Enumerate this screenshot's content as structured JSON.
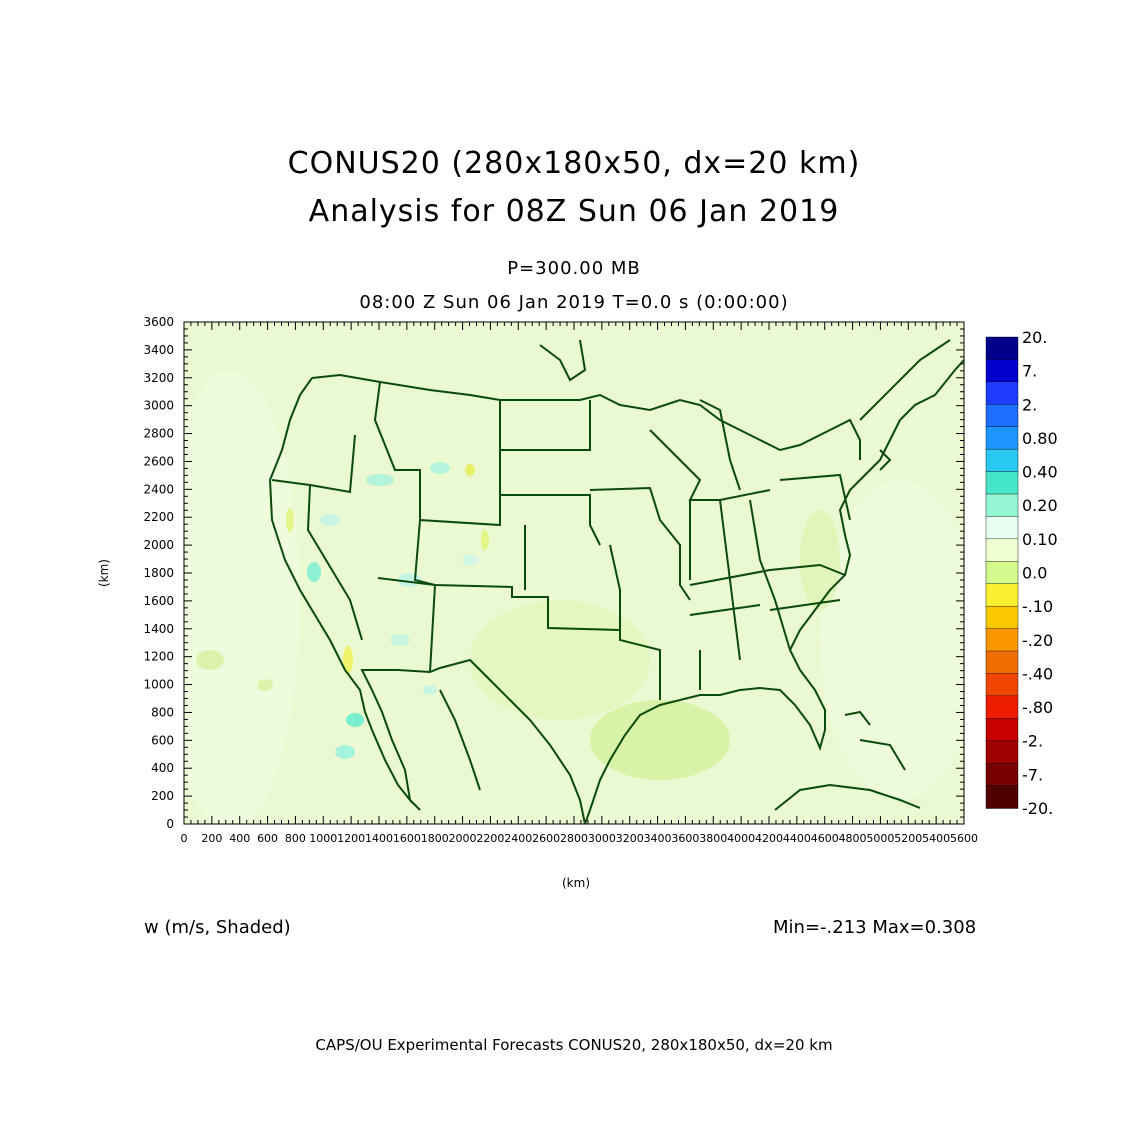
{
  "header": {
    "title_line1": "CONUS20 (280x180x50, dx=20 km)",
    "title_line2": "Analysis for 08Z Sun 06 Jan 2019",
    "level": "P=300.00 MB",
    "time_line": "08:00 Z Sun 06 Jan 2019    T=0.0 s (0:00:00)"
  },
  "axes": {
    "x_label": "(km)",
    "y_label": "(km)",
    "x_ticks": [
      "0",
      "200",
      "400",
      "600",
      "800",
      "1000",
      "1200",
      "1400",
      "1600",
      "1800",
      "2000",
      "2200",
      "2400",
      "2600",
      "2800",
      "3000",
      "3200",
      "3400",
      "3600",
      "3800",
      "4000",
      "4200",
      "4400",
      "4600",
      "4800",
      "5000",
      "5200",
      "5400",
      "5600"
    ],
    "y_ticks": [
      "0",
      "200",
      "400",
      "600",
      "800",
      "1000",
      "1200",
      "1400",
      "1600",
      "1800",
      "2000",
      "2200",
      "2400",
      "2600",
      "2800",
      "3000",
      "3200",
      "3400",
      "3600"
    ],
    "x_range": [
      0,
      5600
    ],
    "y_range": [
      0,
      3600
    ]
  },
  "colorbar": {
    "labels": [
      "20.",
      "7.",
      "2.",
      "0.80",
      "0.40",
      "0.20",
      "0.10",
      "0.0",
      "-.10",
      "-.20",
      "-.40",
      "-.80",
      "-2.",
      "-7.",
      "-20."
    ],
    "colors": [
      "#00008b",
      "#0000cd",
      "#1e3cff",
      "#1e6eff",
      "#1e96ff",
      "#28c8f0",
      "#46e6c8",
      "#96f5d2",
      "#e6fff0",
      "#f0ffd2",
      "#d2fa8c",
      "#faf032",
      "#fac800",
      "#fa9600",
      "#f06e00",
      "#f04600",
      "#f01e00",
      "#c80000",
      "#a00000",
      "#780000",
      "#500000"
    ]
  },
  "field": {
    "variable_label": "w (m/s, Shaded)",
    "min_max": "Min=-.213  Max=0.308",
    "base_color": "#eaf9d2"
  },
  "footer": {
    "text": "CAPS/OU Experimental Forecasts  CONUS20, 280x180x50, dx=20 km"
  },
  "map": {
    "coastline_color": "#0a4a0a"
  }
}
